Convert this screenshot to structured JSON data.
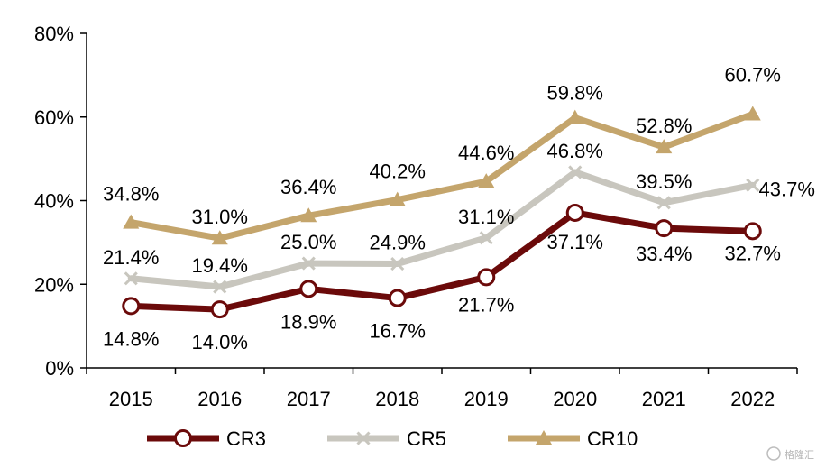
{
  "chart_data": {
    "type": "line",
    "categories": [
      "2015",
      "2016",
      "2017",
      "2018",
      "2019",
      "2020",
      "2021",
      "2022"
    ],
    "ylim": [
      0,
      80
    ],
    "yticks": [
      "0%",
      "20%",
      "40%",
      "60%",
      "80%"
    ],
    "series": [
      {
        "name": "CR3",
        "color": "#6b0a0a",
        "marker": "circle",
        "values": [
          14.8,
          14.0,
          18.9,
          16.7,
          21.7,
          37.1,
          33.4,
          32.7
        ],
        "labels": [
          "14.8%",
          "14.0%",
          "18.9%",
          "16.7%",
          "21.7%",
          "37.1%",
          "33.4%",
          "32.7%"
        ]
      },
      {
        "name": "CR5",
        "color": "#c8c6be",
        "marker": "x",
        "values": [
          21.4,
          19.4,
          25.0,
          24.9,
          31.1,
          46.8,
          39.5,
          43.7
        ],
        "labels": [
          "21.4%",
          "19.4%",
          "25.0%",
          "24.9%",
          "31.1%",
          "46.8%",
          "39.5%",
          "43.7%"
        ]
      },
      {
        "name": "CR10",
        "color": "#c4a56c",
        "marker": "triangle",
        "values": [
          34.8,
          31.0,
          36.4,
          40.2,
          44.6,
          59.8,
          52.8,
          60.7
        ],
        "labels": [
          "34.8%",
          "31.0%",
          "36.4%",
          "40.2%",
          "44.6%",
          "59.8%",
          "52.8%",
          "60.7%"
        ]
      }
    ],
    "legend_position": "bottom",
    "grid": false
  },
  "watermark": "格隆汇"
}
